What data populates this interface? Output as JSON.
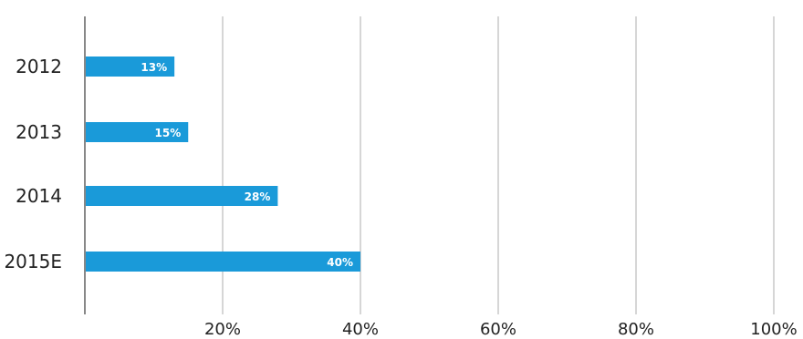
{
  "chart_data": {
    "type": "bar",
    "orientation": "horizontal",
    "categories": [
      "2012",
      "2013",
      "2014",
      "2015E"
    ],
    "values": [
      13,
      15,
      28,
      40
    ],
    "value_labels": [
      "13%",
      "15%",
      "28%",
      "40%"
    ],
    "xlim": [
      0,
      100
    ],
    "x_ticks": [
      20,
      40,
      60,
      80,
      100
    ],
    "x_tick_labels": [
      "20%",
      "40%",
      "60%",
      "80%",
      "100%"
    ],
    "grid": true,
    "legend": "none",
    "bar_color": "#1a9ad9",
    "grid_color": "#c8c8c8",
    "axis_color": "#888888"
  }
}
